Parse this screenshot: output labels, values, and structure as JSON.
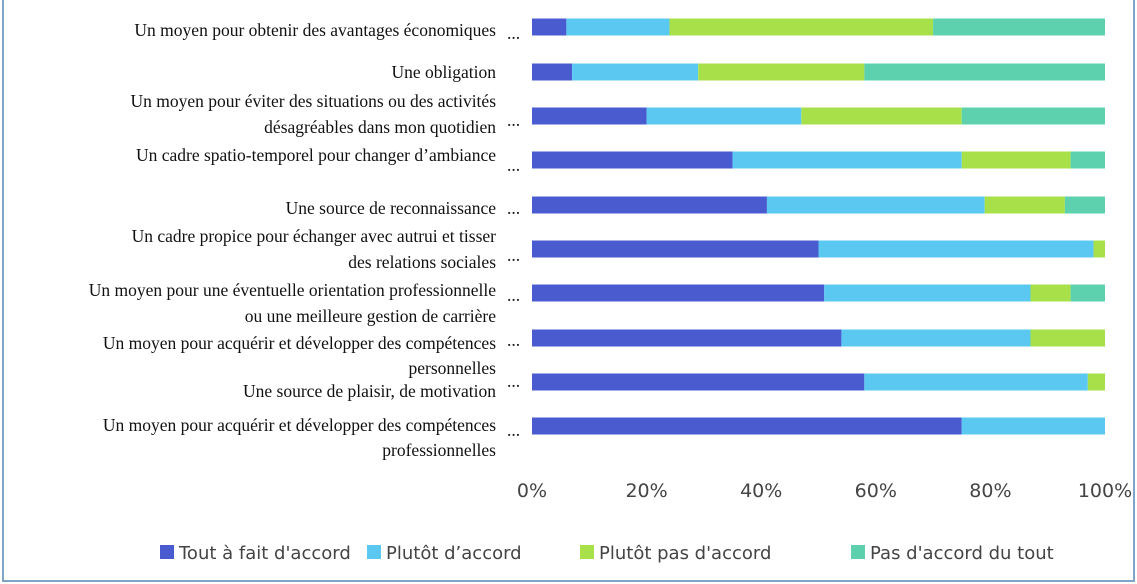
{
  "chart_data": {
    "type": "stacked_bar_horizontal",
    "categories": [
      [
        "Un moyen pour obtenir des avantages économiques"
      ],
      [
        "Une obligation"
      ],
      [
        "Un moyen pour éviter des situations ou des activités",
        "désagréables dans mon quotidien"
      ],
      [
        "Un cadre spatio-temporel pour changer d’ambiance"
      ],
      [
        "Une source de reconnaissance"
      ],
      [
        "Un cadre propice pour échanger avec autrui et tisser",
        "des relations sociales"
      ],
      [
        "Un moyen pour une éventuelle orientation professionnelle",
        "ou une meilleure gestion de carrière"
      ],
      [
        "Un moyen pour acquérir et développer des compétences",
        "personnelles"
      ],
      [
        "Une source de plaisir, de motivation"
      ],
      [
        "Un moyen pour acquérir et développer des compétences",
        "professionnelles"
      ]
    ],
    "truncation_marks": [
      "...",
      null,
      "...",
      "...",
      "...",
      "...",
      "...",
      "...",
      "...",
      "..."
    ],
    "series": [
      {
        "name": "Tout à fait d'accord",
        "color": "#4a5bd0",
        "values": [
          6,
          7,
          20,
          35,
          41,
          50,
          51,
          54,
          58,
          75
        ]
      },
      {
        "name": "Plutôt d’accord",
        "color": "#5bc8f2",
        "values": [
          18,
          22,
          27,
          40,
          38,
          48,
          36,
          33,
          39,
          25
        ]
      },
      {
        "name": "Plutôt pas d'accord",
        "color": "#a8e04a",
        "values": [
          46,
          29,
          28,
          19,
          14,
          2,
          7,
          13,
          3,
          0
        ]
      },
      {
        "name": "Pas d'accord du tout",
        "color": "#5dd0ae",
        "values": [
          30,
          42,
          25,
          6,
          7,
          0,
          6,
          0,
          0,
          0
        ]
      }
    ],
    "xlim": [
      0,
      100
    ],
    "xticks": [
      {
        "value": 0,
        "label": "0%"
      },
      {
        "value": 20,
        "label": "20%"
      },
      {
        "value": 40,
        "label": "40%"
      },
      {
        "value": 60,
        "label": "60%"
      },
      {
        "value": 80,
        "label": "80%"
      },
      {
        "value": 100,
        "label": "100%"
      }
    ],
    "legend": "bottom"
  }
}
